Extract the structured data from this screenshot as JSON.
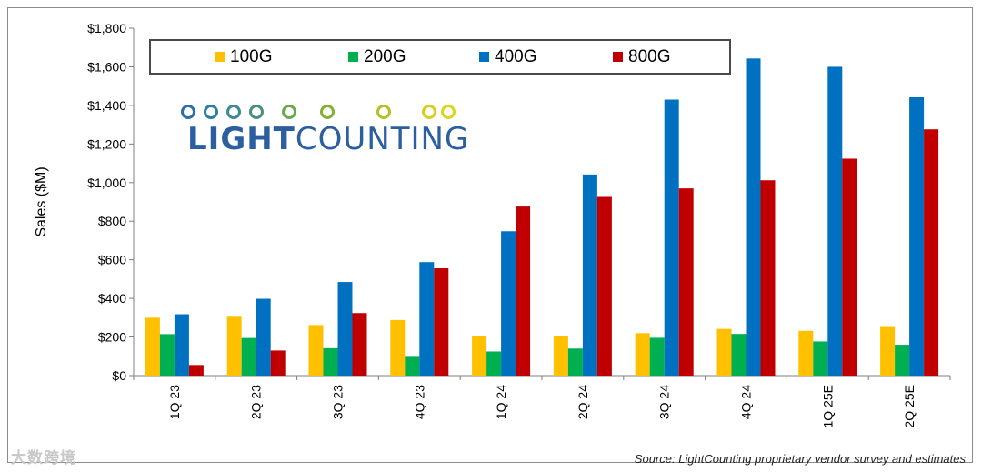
{
  "chart_data": {
    "type": "bar",
    "categories": [
      "1Q 23",
      "2Q 23",
      "3Q 23",
      "4Q 23",
      "1Q 24",
      "2Q 24",
      "3Q 24",
      "4Q 24",
      "1Q 25E",
      "2Q 25E"
    ],
    "series": [
      {
        "name": "100G",
        "color": "#ffc000",
        "values": [
          300,
          305,
          262,
          288,
          207,
          207,
          220,
          242,
          232,
          252
        ]
      },
      {
        "name": "200G",
        "color": "#00b050",
        "values": [
          215,
          195,
          142,
          102,
          125,
          140,
          196,
          216,
          177,
          160
        ]
      },
      {
        "name": "400G",
        "color": "#0070c0",
        "values": [
          318,
          398,
          485,
          588,
          748,
          1042,
          1430,
          1643,
          1600,
          1442
        ]
      },
      {
        "name": "800G",
        "color": "#c00000",
        "values": [
          55,
          130,
          324,
          556,
          876,
          926,
          970,
          1012,
          1124,
          1276
        ]
      }
    ],
    "ylabel": "Sales ($M)",
    "ylim": [
      0,
      1800
    ],
    "yticks": [
      "$0",
      "$200",
      "$400",
      "$600",
      "$800",
      "$1,000",
      "$1,200",
      "$1,400",
      "$1,600",
      "$1,800"
    ],
    "legend_position": "top",
    "grid": false
  },
  "logo": {
    "text": "LIGHTCOUNTING",
    "text_part1": "LIGHT",
    "text_part2": "COUNTING"
  },
  "source": "Source: LightCounting proprietary vendor survey and estimates",
  "watermark": "大数跨境"
}
